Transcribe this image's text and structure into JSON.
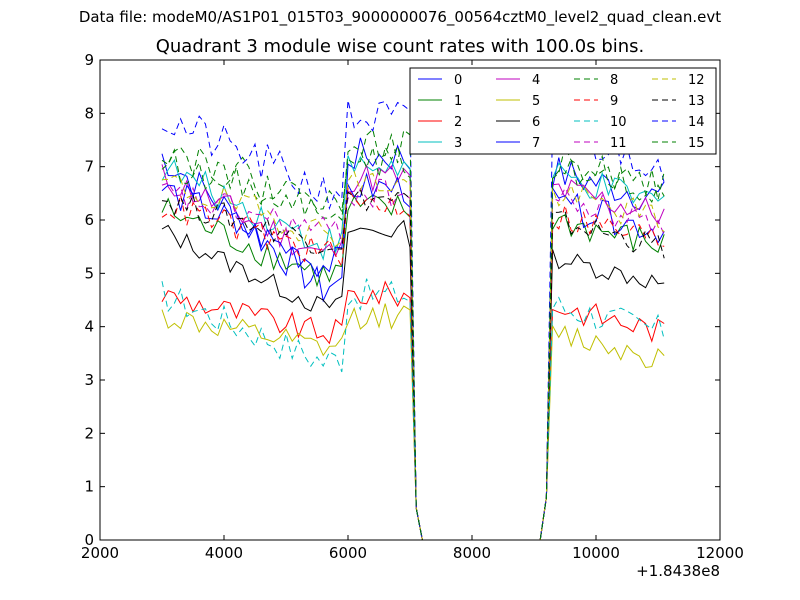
{
  "header": {
    "data_file_label": "Data file: modeM0/AS1P01_015T03_9000000076_00564cztM0_level2_quad_clean.evt"
  },
  "chart_data": {
    "type": "line",
    "title": "Quadrant 3 module wise count rates with 100.0s bins.",
    "xlabel": "",
    "ylabel": "",
    "x_offset_label": "+1.8438e8",
    "xlim": [
      2000,
      12000
    ],
    "ylim": [
      0,
      9
    ],
    "x_ticks": [
      2000,
      4000,
      6000,
      8000,
      10000,
      12000
    ],
    "y_ticks": [
      0,
      1,
      2,
      3,
      4,
      5,
      6,
      7,
      8,
      9
    ],
    "grid": false,
    "legend_position": "top-right",
    "x_segments": [
      {
        "start": 3000,
        "step": 100,
        "count": 41
      },
      {
        "start": 7100,
        "step": 100,
        "count": 2
      },
      {
        "start": 9100,
        "step": 100,
        "count": 21
      }
    ],
    "series": [
      {
        "name": "0",
        "color": "#0000ff",
        "dash": false,
        "level_a": 7.2,
        "level_b": 6.9,
        "dip": 4.8,
        "noise": 0.35
      },
      {
        "name": "1",
        "color": "#008000",
        "dash": false,
        "level_a": 6.2,
        "level_b": 6.0,
        "dip": 5.0,
        "noise": 0.3
      },
      {
        "name": "2",
        "color": "#ff0000",
        "dash": false,
        "level_a": 4.6,
        "level_b": 4.4,
        "dip": 3.9,
        "noise": 0.25
      },
      {
        "name": "3",
        "color": "#00bfbf",
        "dash": false,
        "level_a": 7.0,
        "level_b": 6.8,
        "dip": 5.6,
        "noise": 0.3
      },
      {
        "name": "4",
        "color": "#bf00bf",
        "dash": false,
        "level_a": 6.8,
        "level_b": 6.6,
        "dip": 5.4,
        "noise": 0.3
      },
      {
        "name": "5",
        "color": "#bfbf00",
        "dash": false,
        "level_a": 4.2,
        "level_b": 3.9,
        "dip": 3.6,
        "noise": 0.25
      },
      {
        "name": "6",
        "color": "#000000",
        "dash": false,
        "level_a": 5.8,
        "level_b": 5.3,
        "dip": 4.4,
        "noise": 0.2
      },
      {
        "name": "7",
        "color": "#0000ff",
        "dash": false,
        "level_a": 6.6,
        "level_b": 6.3,
        "dip": 5.2,
        "noise": 0.3
      },
      {
        "name": "8",
        "color": "#008000",
        "dash": true,
        "level_a": 7.1,
        "level_b": 7.0,
        "dip": 6.3,
        "noise": 0.3
      },
      {
        "name": "9",
        "color": "#ff0000",
        "dash": true,
        "level_a": 6.3,
        "level_b": 6.1,
        "dip": 5.4,
        "noise": 0.3
      },
      {
        "name": "10",
        "color": "#00bfbf",
        "dash": true,
        "level_a": 4.6,
        "level_b": 4.4,
        "dip": 3.4,
        "noise": 0.3
      },
      {
        "name": "11",
        "color": "#bf00bf",
        "dash": true,
        "level_a": 6.5,
        "level_b": 6.4,
        "dip": 5.8,
        "noise": 0.3
      },
      {
        "name": "12",
        "color": "#bfbf00",
        "dash": true,
        "level_a": 6.7,
        "level_b": 6.5,
        "dip": 5.8,
        "noise": 0.3
      },
      {
        "name": "13",
        "color": "#000000",
        "dash": true,
        "level_a": 6.4,
        "level_b": 6.0,
        "dip": 5.6,
        "noise": 0.25
      },
      {
        "name": "14",
        "color": "#0000ff",
        "dash": true,
        "level_a": 7.9,
        "level_b": 7.6,
        "dip": 6.6,
        "noise": 0.4
      },
      {
        "name": "15",
        "color": "#008000",
        "dash": true,
        "level_a": 7.4,
        "level_b": 7.1,
        "dip": 6.3,
        "noise": 0.35
      }
    ]
  }
}
